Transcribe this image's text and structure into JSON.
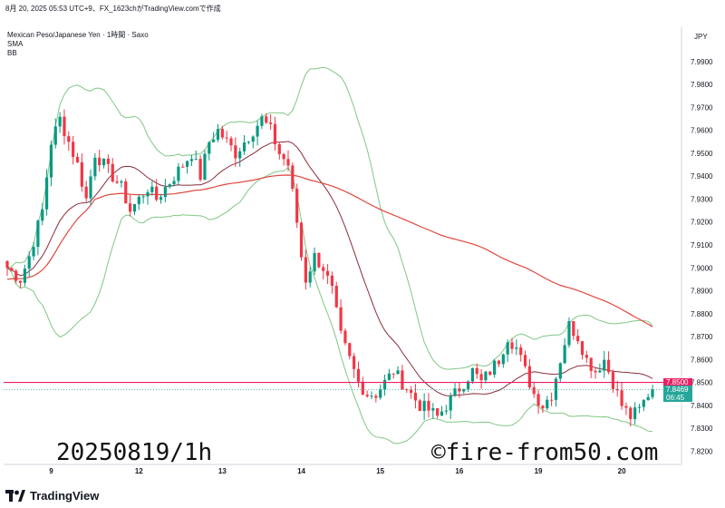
{
  "header": {
    "topbar": "8月 20, 2025 05:53 UTC+9、FX_1623chがTradingView.comで作成",
    "symbol": "Mexican Peso/Japanese Yen · 1時間 · Saxo",
    "indicator1": "SMA",
    "indicator2": "BB"
  },
  "axis_unit": "JPY",
  "price_tags": {
    "line_price": "7.8500",
    "last_price": "7.8469",
    "countdown": "06:45"
  },
  "watermarks": {
    "date": "20250819/1h",
    "site": "©fire-from50.com"
  },
  "footer": {
    "brand": "TradingView"
  },
  "colors": {
    "up": "#089981",
    "down": "#f23645",
    "bb": "#81c784",
    "sma_fast": "#8b2d3a",
    "sma_slow": "#e0473d",
    "hline": "#e91e63",
    "last": "#26a69a"
  },
  "chart_data": {
    "type": "candlestick",
    "ylim": [
      7.815,
      8.005
    ],
    "y_ticks": [
      "7.9900",
      "7.9800",
      "7.9700",
      "7.9600",
      "7.9500",
      "7.9400",
      "7.9300",
      "7.9200",
      "7.9100",
      "7.9000",
      "7.8900",
      "7.8800",
      "7.8700",
      "7.8600",
      "7.8500",
      "7.8400",
      "7.8300",
      "7.8200"
    ],
    "x_ticks": [
      {
        "label": "9",
        "index": 10
      },
      {
        "label": "12",
        "index": 30
      },
      {
        "label": "13",
        "index": 49
      },
      {
        "label": "14",
        "index": 67
      },
      {
        "label": "15",
        "index": 85
      },
      {
        "label": "16",
        "index": 103
      },
      {
        "label": "19",
        "index": 121
      },
      {
        "label": "20",
        "index": 140
      }
    ],
    "candles_count": 148,
    "anchors": [
      [
        0,
        7.9
      ],
      [
        3,
        7.895
      ],
      [
        5,
        7.905
      ],
      [
        8,
        7.925
      ],
      [
        10,
        7.955
      ],
      [
        12,
        7.965
      ],
      [
        14,
        7.955
      ],
      [
        16,
        7.945
      ],
      [
        18,
        7.93
      ],
      [
        20,
        7.95
      ],
      [
        22,
        7.945
      ],
      [
        24,
        7.94
      ],
      [
        26,
        7.935
      ],
      [
        28,
        7.925
      ],
      [
        30,
        7.93
      ],
      [
        32,
        7.935
      ],
      [
        34,
        7.93
      ],
      [
        36,
        7.935
      ],
      [
        38,
        7.94
      ],
      [
        40,
        7.945
      ],
      [
        42,
        7.95
      ],
      [
        44,
        7.94
      ],
      [
        46,
        7.955
      ],
      [
        48,
        7.96
      ],
      [
        50,
        7.955
      ],
      [
        52,
        7.95
      ],
      [
        54,
        7.955
      ],
      [
        56,
        7.96
      ],
      [
        58,
        7.965
      ],
      [
        60,
        7.96
      ],
      [
        62,
        7.95
      ],
      [
        64,
        7.945
      ],
      [
        66,
        7.92
      ],
      [
        67,
        7.905
      ],
      [
        68,
        7.895
      ],
      [
        70,
        7.905
      ],
      [
        72,
        7.9
      ],
      [
        74,
        7.89
      ],
      [
        76,
        7.87
      ],
      [
        78,
        7.86
      ],
      [
        80,
        7.85
      ],
      [
        82,
        7.845
      ],
      [
        84,
        7.845
      ],
      [
        86,
        7.85
      ],
      [
        88,
        7.855
      ],
      [
        90,
        7.85
      ],
      [
        92,
        7.845
      ],
      [
        94,
        7.84
      ],
      [
        96,
        7.838
      ],
      [
        98,
        7.835
      ],
      [
        100,
        7.84
      ],
      [
        102,
        7.845
      ],
      [
        104,
        7.85
      ],
      [
        106,
        7.855
      ],
      [
        108,
        7.85
      ],
      [
        110,
        7.855
      ],
      [
        112,
        7.86
      ],
      [
        114,
        7.87
      ],
      [
        116,
        7.865
      ],
      [
        118,
        7.855
      ],
      [
        120,
        7.845
      ],
      [
        122,
        7.84
      ],
      [
        124,
        7.845
      ],
      [
        126,
        7.86
      ],
      [
        128,
        7.875
      ],
      [
        130,
        7.87
      ],
      [
        132,
        7.86
      ],
      [
        134,
        7.855
      ],
      [
        136,
        7.86
      ],
      [
        138,
        7.85
      ],
      [
        140,
        7.84
      ],
      [
        142,
        7.835
      ],
      [
        144,
        7.838
      ],
      [
        146,
        7.845
      ],
      [
        147,
        7.847
      ]
    ],
    "hline_value": 7.85,
    "last_value": 7.8469
  }
}
